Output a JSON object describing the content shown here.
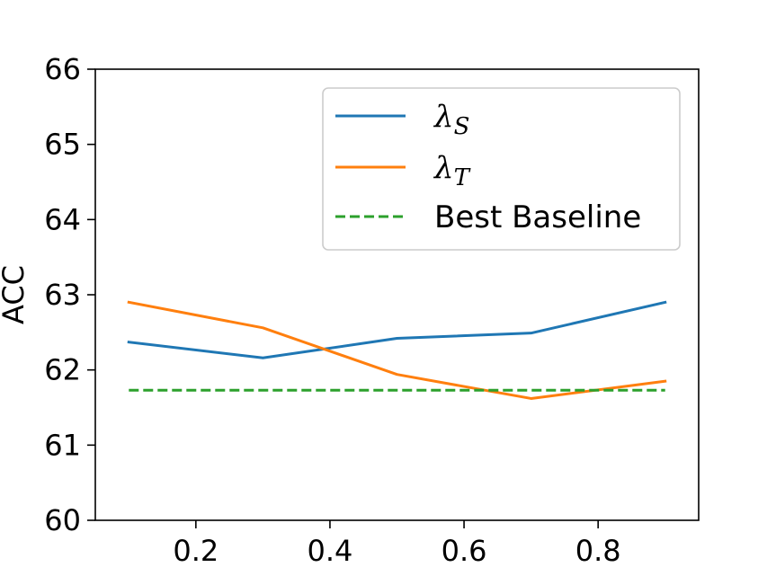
{
  "chart_data": {
    "type": "line",
    "xlabel": "",
    "ylabel": "ACC",
    "xlim": [
      0.05,
      0.95
    ],
    "ylim": [
      60,
      66
    ],
    "xticks": [
      "0.2",
      "0.4",
      "0.6",
      "0.8"
    ],
    "xtick_values": [
      0.2,
      0.4,
      0.6,
      0.8
    ],
    "yticks": [
      "60",
      "61",
      "62",
      "63",
      "64",
      "65",
      "66"
    ],
    "ytick_values": [
      60,
      61,
      62,
      63,
      64,
      65,
      66
    ],
    "grid": false,
    "legend_position": "top-right",
    "series": [
      {
        "name": "λS",
        "name_base": "λ",
        "name_sub": "S",
        "color": "#1f77b4",
        "style": "solid",
        "x": [
          0.1,
          0.3,
          0.5,
          0.7,
          0.9
        ],
        "y": [
          62.37,
          62.16,
          62.42,
          62.49,
          62.9
        ]
      },
      {
        "name": "λT",
        "name_base": "λ",
        "name_sub": "T",
        "color": "#ff7f0e",
        "style": "solid",
        "x": [
          0.1,
          0.3,
          0.5,
          0.7,
          0.9
        ],
        "y": [
          62.9,
          62.56,
          61.94,
          61.62,
          61.85
        ]
      },
      {
        "name": "Best Baseline",
        "color": "#2ca02c",
        "style": "dashed",
        "x": [
          0.1,
          0.9
        ],
        "y": [
          61.73,
          61.73
        ]
      }
    ]
  }
}
